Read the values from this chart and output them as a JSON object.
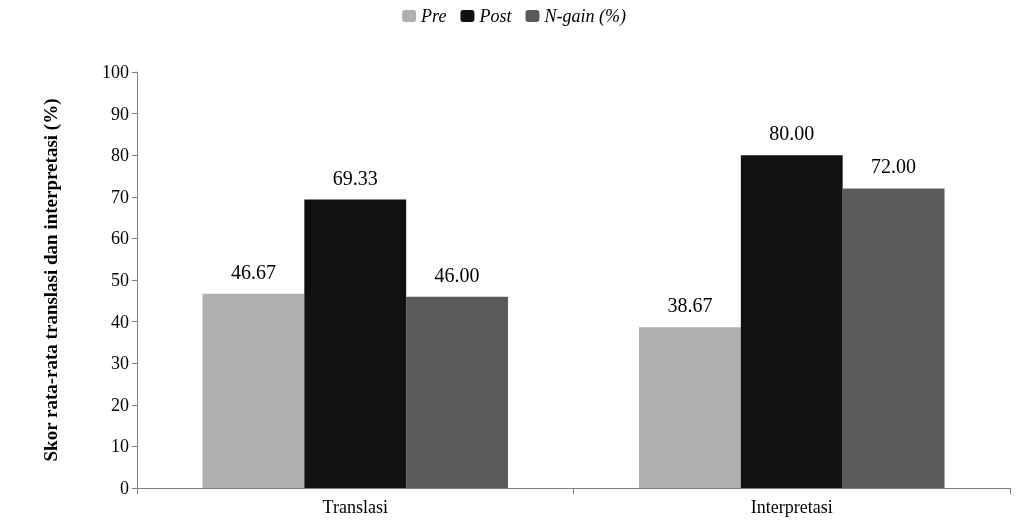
{
  "chart_data": {
    "type": "bar",
    "ylabel": "Skor rata-rata translasi dan interpretasi (%)",
    "categories": [
      "Translasi",
      "Interpretasi"
    ],
    "series": [
      {
        "name": "Pre",
        "color": "#b0b0b0",
        "values": [
          46.67,
          38.67
        ],
        "value_labels": [
          "46.67",
          "38.67"
        ]
      },
      {
        "name": "Post",
        "color": "#111111",
        "values": [
          69.33,
          80.0
        ],
        "value_labels": [
          "69.33",
          "80.00"
        ]
      },
      {
        "name": "N-gain (%)",
        "color": "#5a5a5a",
        "values": [
          46.0,
          72.0
        ],
        "value_labels": [
          "46.00",
          "72.00"
        ]
      }
    ],
    "ylim": [
      0,
      100
    ],
    "yticks": [
      0,
      10,
      20,
      30,
      40,
      50,
      60,
      70,
      80,
      90,
      100
    ],
    "grid": false,
    "legend": "top"
  }
}
